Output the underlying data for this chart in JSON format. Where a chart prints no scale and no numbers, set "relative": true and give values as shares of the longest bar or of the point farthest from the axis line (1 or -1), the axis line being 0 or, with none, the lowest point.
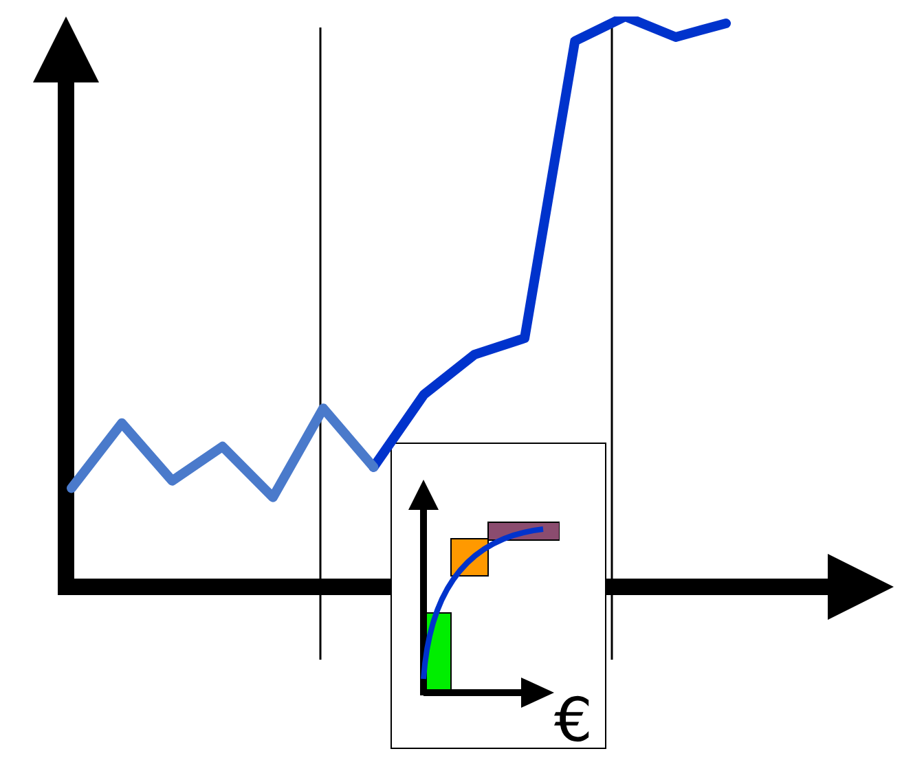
{
  "chart_data": {
    "type": "line",
    "relative": true,
    "categories": [
      null,
      null,
      null,
      null,
      null,
      null,
      null,
      null,
      null,
      null,
      null,
      null,
      null,
      null
    ],
    "series": [
      {
        "color": "#4a7acb",
        "values": [
          0.173,
          0.287,
          0.186,
          0.246,
          0.157,
          0.313,
          0.21,
          null,
          null,
          null,
          null,
          null,
          null,
          null
        ]
      },
      {
        "color": "#0033cc",
        "values": [
          null,
          null,
          null,
          null,
          null,
          null,
          0.21,
          0.337,
          0.407,
          0.436,
          0.957,
          1,
          0.964,
          0.988
        ]
      }
    ],
    "annotations": [
      "€"
    ],
    "legend": false,
    "marker": "none",
    "line_style": "solid"
  }
}
